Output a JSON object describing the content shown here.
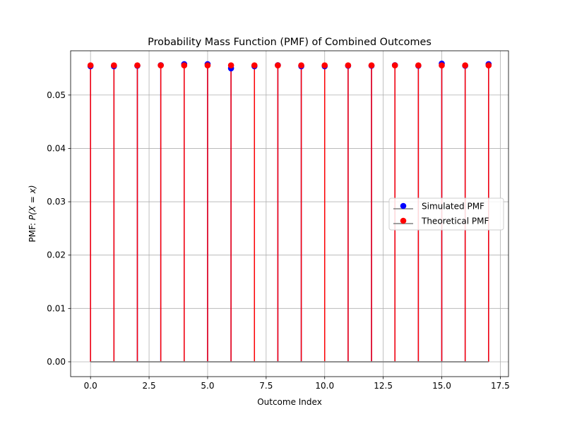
{
  "chart_data": {
    "type": "stem",
    "title": "Probability Mass Function (PMF) of Combined Outcomes",
    "xlabel": "Outcome Index",
    "ylabel_prefix": "PMF: ",
    "ylabel_math": "P(X = x)",
    "xlim": [
      -0.85,
      17.85
    ],
    "ylim": [
      -0.00278,
      0.0583
    ],
    "x_ticks": [
      0.0,
      2.5,
      5.0,
      7.5,
      10.0,
      12.5,
      15.0,
      17.5
    ],
    "x_tick_labels": [
      "0.0",
      "2.5",
      "5.0",
      "7.5",
      "10.0",
      "12.5",
      "15.0",
      "17.5"
    ],
    "y_ticks": [
      0.0,
      0.01,
      0.02,
      0.03,
      0.04,
      0.05
    ],
    "y_tick_labels": [
      "0.00",
      "0.01",
      "0.02",
      "0.03",
      "0.04",
      "0.05"
    ],
    "grid": true,
    "legend_position": "center-right",
    "x": [
      0,
      1,
      2,
      3,
      4,
      5,
      6,
      7,
      8,
      9,
      10,
      11,
      12,
      13,
      14,
      15,
      16,
      17
    ],
    "series": [
      {
        "name": "Simulated PMF",
        "marker_color": "#0000ff",
        "stem_color": "#0000ff",
        "baseline_color": "#808080",
        "values": [
          0.0554,
          0.0554,
          0.0555,
          0.0556,
          0.0558,
          0.0558,
          0.055,
          0.0554,
          0.0556,
          0.0554,
          0.0554,
          0.0555,
          0.0555,
          0.0556,
          0.0555,
          0.0559,
          0.0555,
          0.0558
        ]
      },
      {
        "name": "Theoretical PMF",
        "marker_color": "#ff0000",
        "stem_color": "#ff0000",
        "baseline_color": "#808080",
        "values": [
          0.05556,
          0.05556,
          0.05556,
          0.05556,
          0.05556,
          0.05556,
          0.05556,
          0.05556,
          0.05556,
          0.05556,
          0.05556,
          0.05556,
          0.05556,
          0.05556,
          0.05556,
          0.05556,
          0.05556,
          0.05556
        ]
      }
    ]
  }
}
